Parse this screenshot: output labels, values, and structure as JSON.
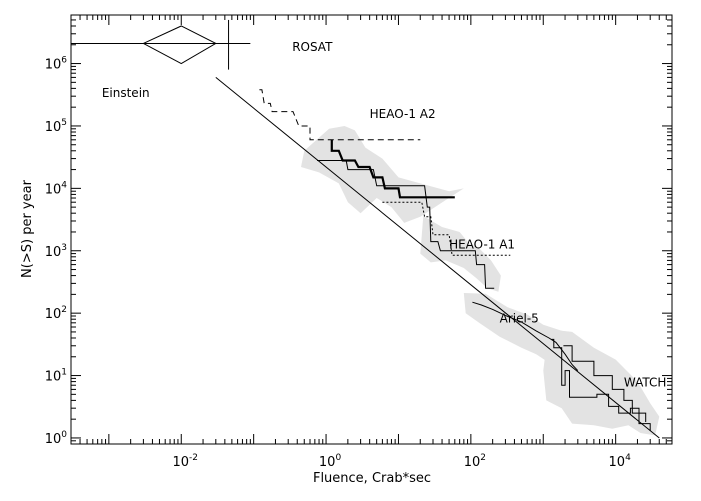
{
  "chart_data": {
    "type": "line",
    "title": "",
    "xlabel": "Fluence, Crab*sec",
    "ylabel": "N(>S) per year",
    "x_scale": "log",
    "y_scale": "log",
    "xlim": [
      0.0003,
      60000
    ],
    "ylim": [
      0.8,
      6000000
    ],
    "x_ticks": [
      {
        "value": 0.01,
        "base": "10",
        "exp": "-2"
      },
      {
        "value": 1,
        "base": "10",
        "exp": "0"
      },
      {
        "value": 100,
        "base": "10",
        "exp": "2"
      },
      {
        "value": 10000,
        "base": "10",
        "exp": "4"
      }
    ],
    "y_ticks": [
      {
        "value": 1,
        "base": "10",
        "exp": "0"
      },
      {
        "value": 10,
        "base": "10",
        "exp": "1"
      },
      {
        "value": 100,
        "base": "10",
        "exp": "2"
      },
      {
        "value": 1000,
        "base": "10",
        "exp": "3"
      },
      {
        "value": 10000,
        "base": "10",
        "exp": "4"
      },
      {
        "value": 100000,
        "base": "10",
        "exp": "5"
      },
      {
        "value": 1000000,
        "base": "10",
        "exp": "6"
      }
    ],
    "grid": false,
    "annotations": [
      {
        "text": "ROSAT",
        "x": 0.3,
        "y": 1900000
      },
      {
        "text": "Einstein",
        "x": 0.0008,
        "y": 350000
      },
      {
        "text": "HEAO-1 A2",
        "x": 4,
        "y": 160000
      },
      {
        "text": "HEAO-1 A1",
        "x": 50,
        "y": 1300.0
      },
      {
        "text": "Ariel-5",
        "x": 250,
        "y": 85
      },
      {
        "text": "WATCH",
        "x": 13000,
        "y": 8
      }
    ],
    "series": [
      {
        "style": "thin-solid-line",
        "points": [
          [
            0.03,
            600000
          ],
          [
            40000,
            1
          ]
        ]
      },
      {
        "style": "dashed-step",
        "points": [
          [
            0.12,
            380000
          ],
          [
            0.13,
            380000
          ],
          [
            0.14,
            230000
          ],
          [
            0.17,
            230000
          ],
          [
            0.18,
            170000
          ],
          [
            0.3,
            170000
          ],
          [
            0.35,
            170000
          ],
          [
            0.42,
            100000
          ],
          [
            0.6,
            100000
          ],
          [
            0.6,
            60000
          ],
          [
            20,
            60000
          ]
        ]
      },
      {
        "style": "thick-solid-step",
        "points": [
          [
            1.2,
            60000
          ],
          [
            1.2,
            40000
          ],
          [
            1.5,
            40000
          ],
          [
            1.7,
            28000
          ],
          [
            2.5,
            28000
          ],
          [
            2.8,
            22000
          ],
          [
            4,
            22000
          ],
          [
            4.5,
            15000
          ],
          [
            6,
            15000
          ],
          [
            6.5,
            10000
          ],
          [
            10,
            10000
          ],
          [
            10.5,
            7200
          ],
          [
            60,
            7200
          ]
        ]
      },
      {
        "style": "thin-solid-step",
        "points": [
          [
            0.75,
            28000
          ],
          [
            1.9,
            28000
          ],
          [
            2,
            20000
          ],
          [
            4.5,
            20000
          ],
          [
            5,
            11000
          ],
          [
            23,
            11000
          ],
          [
            25,
            5000
          ],
          [
            27,
            5000
          ],
          [
            28,
            1400
          ],
          [
            35,
            1400
          ],
          [
            38,
            1000
          ],
          [
            115,
            1000
          ],
          [
            120,
            600
          ],
          [
            155,
            600
          ],
          [
            160,
            250
          ],
          [
            210,
            250
          ]
        ]
      },
      {
        "style": "dotted-step",
        "points": [
          [
            6,
            6000
          ],
          [
            21,
            6000
          ],
          [
            23,
            3500
          ],
          [
            28,
            3500
          ],
          [
            30,
            1800
          ],
          [
            50,
            1800
          ],
          [
            55,
            850
          ],
          [
            350,
            850
          ]
        ]
      },
      {
        "style": "thin-solid-curve",
        "points": [
          [
            105,
            150
          ],
          [
            140,
            135
          ],
          [
            200,
            115
          ],
          [
            300,
            92
          ],
          [
            500,
            72
          ],
          [
            800,
            52
          ],
          [
            1200,
            40
          ],
          [
            1500,
            34
          ],
          [
            2000,
            22
          ],
          [
            2500,
            15
          ],
          [
            3000,
            12
          ]
        ]
      },
      {
        "style": "thin-solid-step",
        "points": [
          [
            1300,
            38
          ],
          [
            1400,
            38
          ],
          [
            1400,
            28
          ],
          [
            1800,
            28
          ],
          [
            1800,
            7
          ],
          [
            2000,
            7
          ],
          [
            2000,
            12
          ],
          [
            2300,
            12
          ],
          [
            2300,
            4.5
          ],
          [
            5500,
            4.5
          ],
          [
            5500,
            5
          ],
          [
            8000,
            5
          ],
          [
            8000,
            3.2
          ],
          [
            11000,
            3.2
          ],
          [
            11000,
            2.5
          ],
          [
            16000,
            2.5
          ],
          [
            16000,
            3
          ],
          [
            21000,
            3
          ],
          [
            21000,
            1.7
          ],
          [
            30000,
            1.7
          ],
          [
            30000,
            1.3
          ]
        ]
      },
      {
        "style": "thin-solid-step",
        "points": [
          [
            1900,
            30
          ],
          [
            2500,
            30
          ],
          [
            2500,
            17
          ],
          [
            5000,
            17
          ],
          [
            5000,
            10
          ],
          [
            9000,
            10
          ],
          [
            9000,
            6
          ],
          [
            13000,
            6
          ],
          [
            13000,
            4
          ],
          [
            17000,
            4
          ],
          [
            17000,
            2.5
          ],
          [
            26000,
            2.5
          ],
          [
            26000,
            1.8
          ]
        ]
      }
    ],
    "shaded_bands": [
      {
        "name": "HEAO-1 A2 band",
        "points": [
          [
            0.5,
            40000
          ],
          [
            1.1,
            90000
          ],
          [
            1.8,
            100000
          ],
          [
            2.5,
            85000
          ],
          [
            3.5,
            45000
          ],
          [
            6,
            30000
          ],
          [
            10,
            15000
          ],
          [
            20,
            12000
          ],
          [
            50,
            9000
          ],
          [
            80,
            10000
          ],
          [
            45,
            6500
          ],
          [
            20,
            3500
          ],
          [
            12,
            2800
          ],
          [
            8,
            5000
          ],
          [
            5,
            7000
          ],
          [
            3,
            4000
          ],
          [
            2,
            6000
          ],
          [
            1.5,
            12000
          ],
          [
            0.8,
            18000
          ],
          [
            0.45,
            22000
          ]
        ]
      },
      {
        "name": "HEAO-1 A1 band",
        "points": [
          [
            22,
            3600
          ],
          [
            40,
            2400
          ],
          [
            70,
            2000
          ],
          [
            95,
            1300
          ],
          [
            130,
            1100
          ],
          [
            190,
            700
          ],
          [
            260,
            400
          ],
          [
            240,
            220
          ],
          [
            170,
            250
          ],
          [
            120,
            360
          ],
          [
            80,
            530
          ],
          [
            45,
            700
          ],
          [
            28,
            650
          ],
          [
            20,
            900
          ]
        ]
      },
      {
        "name": "Ariel-5 band",
        "points": [
          [
            80,
            210
          ],
          [
            160,
            205
          ],
          [
            320,
            125
          ],
          [
            600,
            95
          ],
          [
            1000,
            65
          ],
          [
            2000,
            50
          ],
          [
            3000,
            35
          ],
          [
            2000,
            15
          ],
          [
            1200,
            16
          ],
          [
            800,
            22
          ],
          [
            500,
            28
          ],
          [
            250,
            42
          ],
          [
            130,
            70
          ],
          [
            85,
            100
          ]
        ]
      },
      {
        "name": "WATCH band",
        "points": [
          [
            1200,
            55
          ],
          [
            2500,
            50
          ],
          [
            5000,
            28
          ],
          [
            10000,
            18
          ],
          [
            20000,
            8
          ],
          [
            30000,
            3.6
          ],
          [
            40000,
            2.2
          ],
          [
            35000,
            1.1
          ],
          [
            22000,
            1.2
          ],
          [
            15000,
            1.6
          ],
          [
            9000,
            1.4
          ],
          [
            5000,
            1.6
          ],
          [
            2500,
            1.7
          ],
          [
            1800,
            3
          ],
          [
            1100,
            4
          ],
          [
            1000,
            12
          ],
          [
            1100,
            30
          ]
        ]
      }
    ],
    "error_bar_markers": [
      {
        "name": "ROSAT",
        "x": 0.045,
        "y": 2100000,
        "x_low": 0.0003,
        "x_high": 0.09,
        "y_low": 800000,
        "y_high": 5000000
      },
      {
        "name": "Einstein",
        "x": 0.01,
        "y": 2100000,
        "x_low": 0.003,
        "x_high": 0.03,
        "y_low": 1000000,
        "y_high": 4000000
      }
    ]
  }
}
